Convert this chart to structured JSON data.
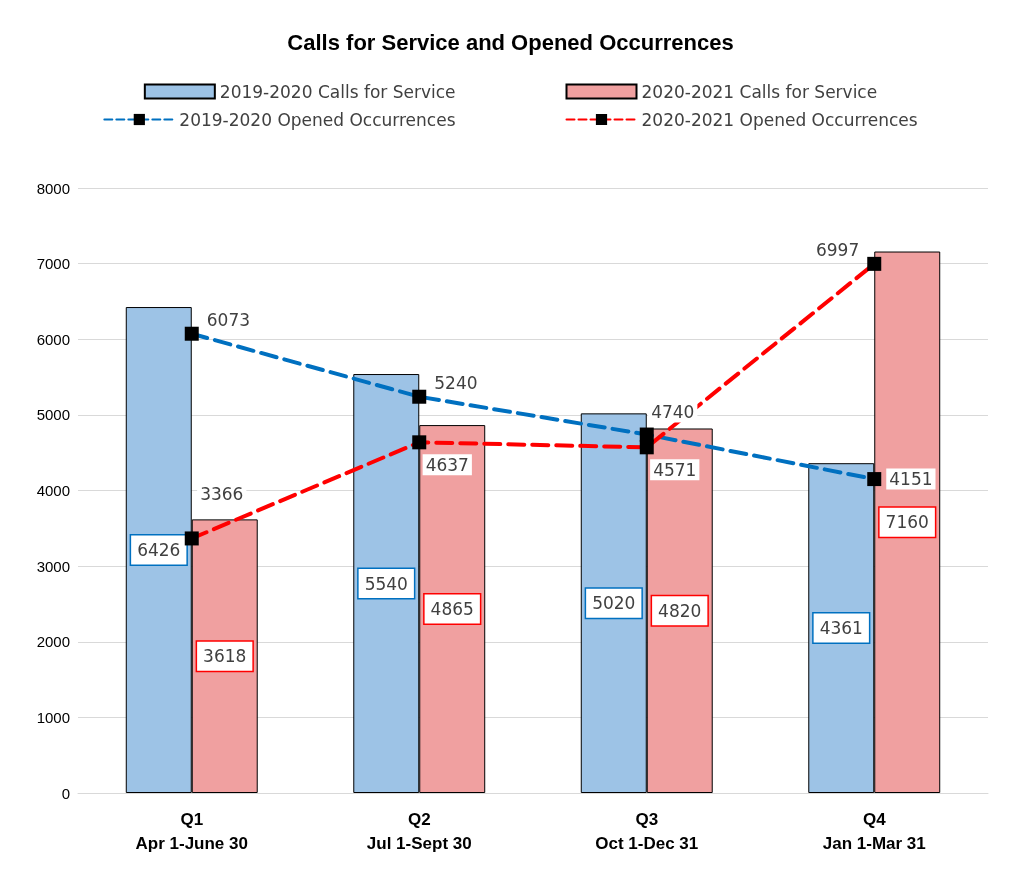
{
  "chart_data": {
    "type": "bar",
    "title": "Calls for Service and Opened Occurrences",
    "categories": [
      "Q1\nApr 1-June 30",
      "Q2\nJul 1-Sept 30",
      "Q3\nOct 1-Dec 31",
      "Q4\nJan 1-Mar 31"
    ],
    "series": [
      {
        "name": "2019-2020 Calls for Service",
        "color": "#9dc3e6",
        "values": [
          6426,
          5540,
          5020,
          4361
        ]
      },
      {
        "name": "2020-2021 Calls for Service",
        "color": "#f0a0a0",
        "values": [
          3618,
          4865,
          4820,
          7160
        ]
      },
      {
        "name": "2019-2020 Opened Occurrences",
        "type": "line",
        "color": "#0070c0",
        "values": [
          6073,
          5240,
          4740,
          4151
        ]
      },
      {
        "name": "2020-2021 Opened Occurrences",
        "type": "line",
        "color": "#ff0000",
        "values": [
          3366,
          4637,
          4571,
          6997
        ]
      }
    ],
    "ylim": [
      0,
      8000
    ],
    "yticks": [
      0,
      1000,
      2000,
      3000,
      4000,
      5000,
      6000,
      7000,
      8000
    ],
    "grid": "y",
    "legend": "top",
    "data_labels": true,
    "marker": "square",
    "line_style": "dashed"
  }
}
